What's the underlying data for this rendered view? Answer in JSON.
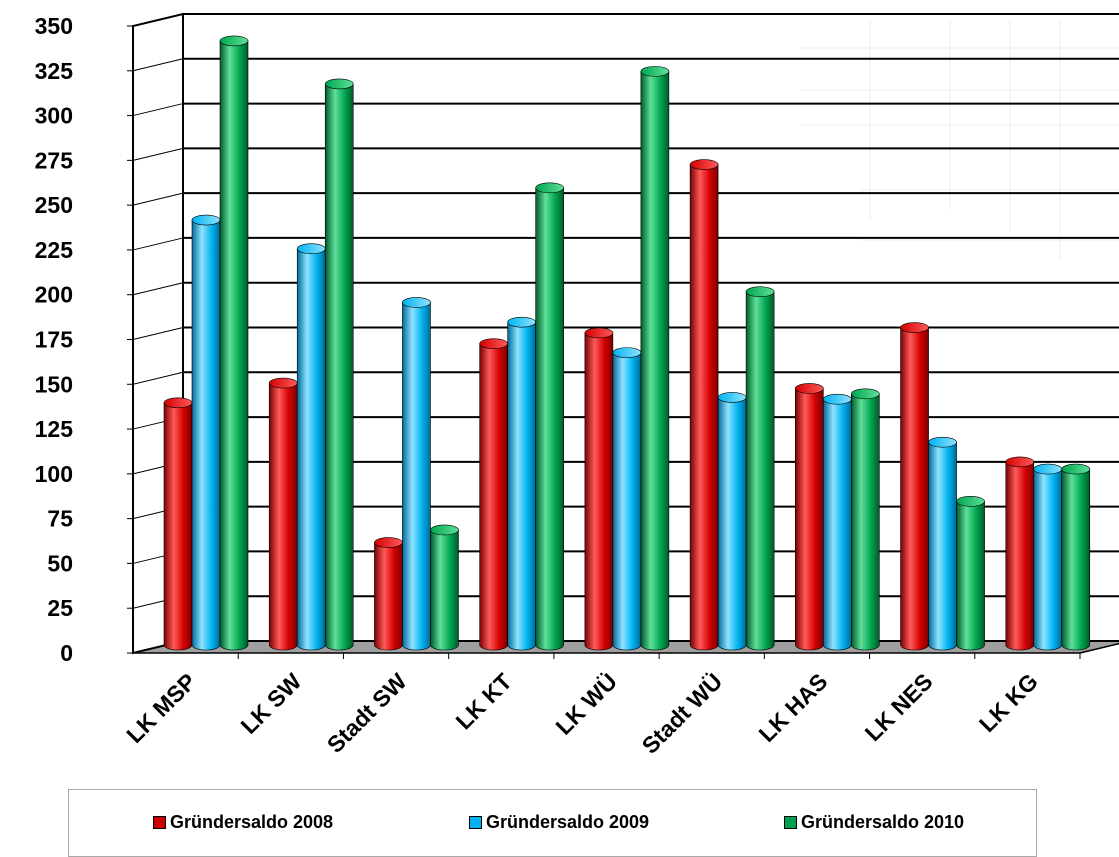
{
  "chart_data": {
    "type": "bar",
    "style": "3d-cylinder",
    "categories": [
      "LK MSP",
      "LK SW",
      "Stadt SW",
      "LK KT",
      "LK WÜ",
      "Stadt WÜ",
      "LK HAS",
      "LK NES",
      "LK KG"
    ],
    "series": [
      {
        "name": "Gründersaldo 2008",
        "color": "#cc0000",
        "values": [
          138,
          149,
          60,
          171,
          177,
          271,
          146,
          180,
          105
        ]
      },
      {
        "name": "Gründersaldo 2009",
        "color": "#00b0f0",
        "values": [
          240,
          224,
          194,
          183,
          166,
          141,
          140,
          116,
          101
        ]
      },
      {
        "name": "Gründersaldo 2010",
        "color": "#00a050",
        "values": [
          340,
          316,
          67,
          258,
          323,
          200,
          143,
          83,
          101
        ]
      }
    ],
    "yticks": [
      0,
      25,
      50,
      75,
      100,
      125,
      150,
      175,
      200,
      225,
      250,
      275,
      300,
      325,
      350
    ],
    "ylim": [
      0,
      350
    ],
    "grid": true,
    "legend_position": "bottom",
    "title": "",
    "xlabel": "",
    "ylabel": ""
  }
}
